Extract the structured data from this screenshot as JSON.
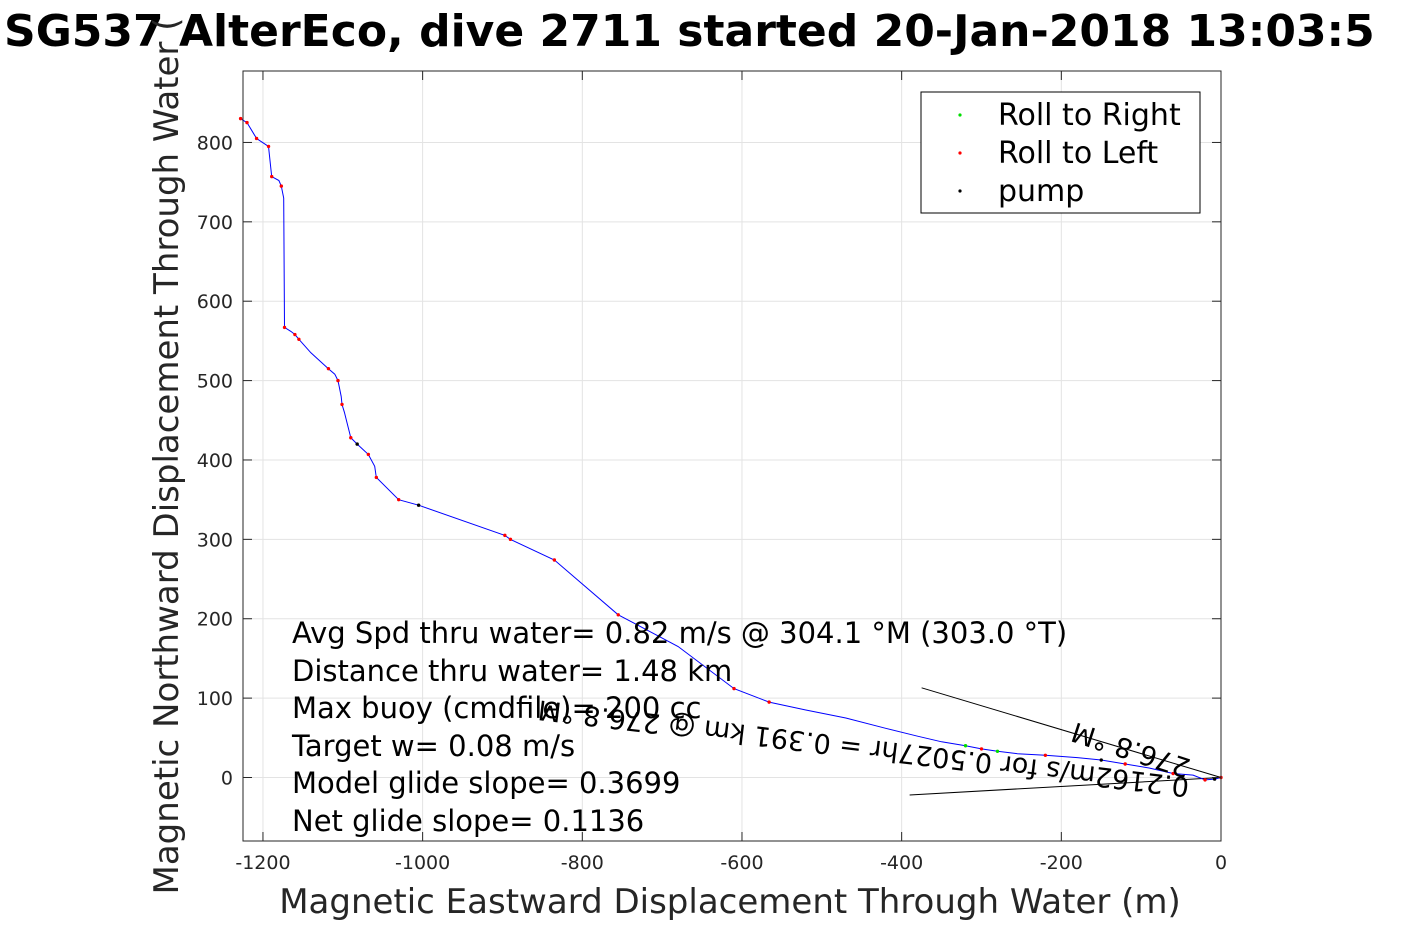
{
  "chart_data": {
    "type": "line",
    "title": "SG537 AlterEco, dive 2711 started 20-Jan-2018 13:03:5",
    "xlabel": "Magnetic Eastward Displacement Through Water (m)",
    "ylabel": "Magnetic Northward Displacement Through Water (",
    "xlim": [
      -1225,
      0
    ],
    "ylim": [
      -80,
      890
    ],
    "grid": true,
    "xticks": [
      -1200,
      -1000,
      -800,
      -600,
      -400,
      -200,
      0
    ],
    "xtick_labels": [
      "-1200",
      "-1000",
      "-800",
      "-600",
      "-400",
      "-200",
      "0"
    ],
    "yticks": [
      0,
      100,
      200,
      300,
      400,
      500,
      600,
      700,
      800
    ],
    "ytick_labels": [
      "0",
      "100",
      "200",
      "300",
      "400",
      "500",
      "600",
      "700",
      "800"
    ],
    "legend": {
      "placement": "top-right",
      "entries": [
        {
          "label": "Roll to Right",
          "color": "#00dd00"
        },
        {
          "label": "Roll to Left",
          "color": "#ff0000"
        },
        {
          "label": "pump",
          "color": "#000000"
        }
      ]
    },
    "series": [
      {
        "name": "track",
        "color": "#0000ff",
        "x": [
          0,
          -8,
          -20,
          -35,
          -60,
          -90,
          -120,
          -150,
          -180,
          -220,
          -255,
          -280,
          -300,
          -320,
          -350,
          -380,
          -420,
          -470,
          -520,
          -566,
          -610,
          -680,
          -755,
          -835,
          -890,
          -897,
          -1005,
          -1030,
          -1058,
          -1060,
          -1068,
          -1082,
          -1090,
          -1092,
          -1095,
          -1098,
          -1101,
          -1102,
          -1106,
          -1110,
          -1118,
          -1140,
          -1155,
          -1160,
          -1165,
          -1173,
          -1174,
          -1177,
          -1180,
          -1189,
          -1193,
          -1208,
          -1220,
          -1225,
          -1228
        ],
        "y": [
          0,
          -2,
          -3,
          3,
          5,
          12,
          17,
          22,
          25,
          28,
          30,
          33,
          36,
          40,
          45,
          52,
          62,
          75,
          85,
          95,
          112,
          165,
          205,
          274,
          300,
          305,
          343,
          350,
          378,
          392,
          407,
          420,
          428,
          436,
          448,
          460,
          470,
          480,
          500,
          508,
          515,
          535,
          552,
          558,
          562,
          567,
          730,
          745,
          752,
          757,
          795,
          805,
          825,
          828,
          830
        ]
      }
    ],
    "markers": {
      "roll_left": {
        "color": "#ff0000",
        "x": [
          0,
          -20,
          -60,
          -120,
          -220,
          -300,
          -566,
          -610,
          -755,
          -835,
          -890,
          -897,
          -1030,
          -1058,
          -1068,
          -1090,
          -1101,
          -1106,
          -1118,
          -1155,
          -1160,
          -1173,
          -1177,
          -1189,
          -1193,
          -1208,
          -1220,
          -1228
        ],
        "y": [
          0,
          -3,
          5,
          17,
          28,
          36,
          95,
          112,
          205,
          274,
          300,
          305,
          350,
          378,
          407,
          428,
          470,
          500,
          515,
          552,
          558,
          567,
          745,
          757,
          795,
          805,
          825,
          830
        ]
      },
      "roll_right": {
        "color": "#00dd00",
        "x": [
          -280,
          -320
        ],
        "y": [
          33,
          40
        ]
      },
      "pump": {
        "color": "#000000",
        "x": [
          -8,
          -150,
          -1005,
          -1082
        ],
        "y": [
          -2,
          22,
          343,
          420
        ]
      }
    },
    "annotations": [
      "Avg Spd thru water=  0.82 m/s @ 304.1 °M (303.0 °T)",
      "Distance thru water=  1.48 km",
      "Max buoy (cmdfile)= 200 cc",
      "Target w= 0.08 m/s",
      "Model glide slope= 0.3699",
      "Net glide slope= 0.1136"
    ],
    "rotated_annotations": [
      "0.2162m/s for 0.5027hr = 0.391 km @ 276.8 °M",
      "276.8 °M"
    ]
  }
}
